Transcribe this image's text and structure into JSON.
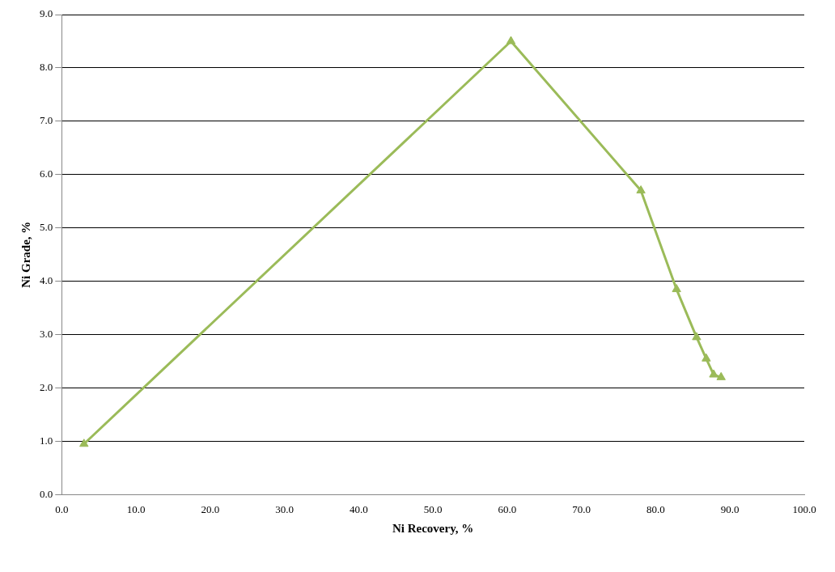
{
  "chart_data": {
    "type": "line",
    "xlabel": "Ni Recovery, %",
    "ylabel": "Ni Grade, %",
    "x": [
      3.0,
      60.5,
      78.0,
      82.8,
      85.5,
      86.8,
      87.8,
      88.8
    ],
    "series": [
      {
        "color": "#9bbb59",
        "values": [
          0.95,
          8.5,
          5.7,
          3.85,
          2.95,
          2.55,
          2.25,
          2.2
        ]
      }
    ],
    "xlim": [
      0,
      100
    ],
    "xticks": [
      {
        "value": 0,
        "label": "0.0"
      },
      {
        "value": 10,
        "label": "10.0"
      },
      {
        "value": 20,
        "label": "20.0"
      },
      {
        "value": 30,
        "label": "30.0"
      },
      {
        "value": 40,
        "label": "40.0"
      },
      {
        "value": 50,
        "label": "50.0"
      },
      {
        "value": 60,
        "label": "60.0"
      },
      {
        "value": 70,
        "label": "70.0"
      },
      {
        "value": 80,
        "label": "80.0"
      },
      {
        "value": 90,
        "label": "90.0"
      },
      {
        "value": 100,
        "label": "100.0"
      }
    ],
    "ylim": [
      0,
      9
    ],
    "yticks": [
      {
        "value": 0,
        "label": "0.0"
      },
      {
        "value": 1,
        "label": "1.0"
      },
      {
        "value": 2,
        "label": "2.0"
      },
      {
        "value": 3,
        "label": "3.0"
      },
      {
        "value": 4,
        "label": "4.0"
      },
      {
        "value": 5,
        "label": "5.0"
      },
      {
        "value": 6,
        "label": "6.0"
      },
      {
        "value": 7,
        "label": "7.0"
      },
      {
        "value": 8,
        "label": "8.0"
      },
      {
        "value": 9,
        "label": "9.0"
      }
    ],
    "grid": "y",
    "marker": "triangle",
    "legend": false
  }
}
